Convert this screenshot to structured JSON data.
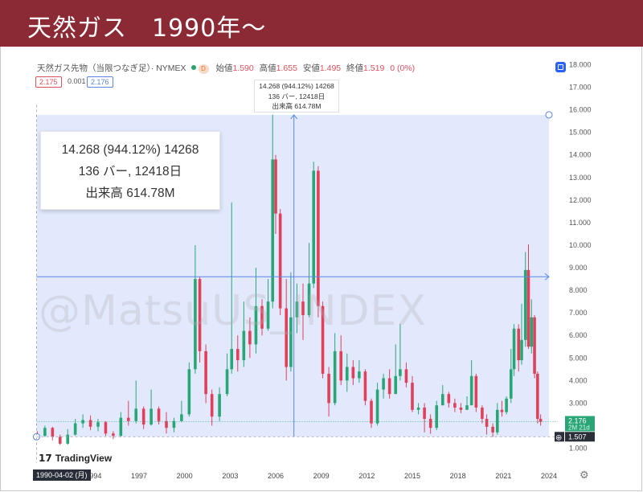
{
  "header": {
    "title": "天然ガス　1990年〜"
  },
  "symbol": {
    "name": "天然ガス先物（当限つなぎ足）· NYMEX",
    "interval_badge": "D",
    "open_label": "始値",
    "open": "1.590",
    "high_label": "高値",
    "high": "1.655",
    "low_label": "安値",
    "low": "1.495",
    "close_label": "終値",
    "close": "1.519",
    "change": "0 (0%)"
  },
  "bid": "2.175",
  "spread": "0.001",
  "ask": "2.176",
  "measure_small": {
    "line1": "14.268 (944.12%) 14268",
    "line2": "136 バー, 12418日",
    "line3": "出来高 614.78M"
  },
  "measure_big": {
    "line1": "14.268 (944.12%) 14268",
    "line2": "136 バー, 12418日",
    "line3": "出来高 614.78M"
  },
  "watermark": "@MatsuUS_INDEX",
  "logo": "TradingView",
  "cursor_date": "1990-04-02 (月)",
  "price_tags": {
    "current": "2.176",
    "countdown": "2M 21d",
    "low_marker": "1.507"
  },
  "colors": {
    "up": "#2aa676",
    "down": "#e0405a",
    "title_bg": "#8b2a35",
    "measure_fill": "#dfe7fd",
    "measure_line": "#5b86e5"
  },
  "chart_data": {
    "type": "candlestick",
    "title": "",
    "interval": "monthly",
    "y_axis": {
      "ticks": [
        "1.000",
        "2.000",
        "3.000",
        "4.000",
        "5.000",
        "6.000",
        "7.000",
        "8.000",
        "9.000",
        "10.000",
        "11.000",
        "12.000",
        "13.000",
        "14.000",
        "15.000",
        "16.000",
        "17.000",
        "18.000"
      ],
      "ylim": [
        1.0,
        18.0
      ],
      "position": "right"
    },
    "x_axis": {
      "ticks": [
        "1994",
        "1997",
        "2000",
        "2003",
        "2006",
        "2009",
        "2012",
        "2015",
        "2018",
        "2021",
        "2024"
      ],
      "range": [
        1990.25,
        2024.0
      ]
    },
    "grid": false,
    "measurement": {
      "x_start": 1990.25,
      "x_end": 2024.0,
      "y_start": 1.507,
      "y_end": 15.775,
      "change": 14.268,
      "percent": 944.12,
      "bars": 136,
      "days": 12418,
      "volume": "614.78M",
      "center_x": 2007.2,
      "mid_y": 8.6
    },
    "candles": [
      [
        1990.3,
        1.6,
        1.55,
        1.75,
        1.45
      ],
      [
        1990.8,
        1.55,
        1.9,
        2.0,
        1.5
      ],
      [
        1991.3,
        1.9,
        1.5,
        1.95,
        1.35
      ],
      [
        1991.8,
        1.5,
        1.2,
        1.6,
        1.15
      ],
      [
        1992.3,
        1.2,
        1.6,
        1.85,
        1.15
      ],
      [
        1992.8,
        1.6,
        2.1,
        2.3,
        1.55
      ],
      [
        1993.3,
        2.1,
        2.25,
        2.5,
        1.9
      ],
      [
        1993.8,
        2.25,
        1.95,
        2.45,
        1.8
      ],
      [
        1994.3,
        1.95,
        2.15,
        2.3,
        1.75
      ],
      [
        1994.8,
        2.15,
        1.65,
        2.2,
        1.55
      ],
      [
        1995.3,
        1.65,
        1.55,
        1.75,
        1.4
      ],
      [
        1995.8,
        1.55,
        2.35,
        2.6,
        1.5
      ],
      [
        1996.3,
        2.35,
        2.2,
        3.1,
        2.0
      ],
      [
        1996.8,
        2.2,
        2.75,
        4.0,
        2.1
      ],
      [
        1997.3,
        2.75,
        2.05,
        2.85,
        1.85
      ],
      [
        1997.8,
        2.05,
        2.75,
        3.6,
        2.0
      ],
      [
        1998.3,
        2.75,
        2.2,
        2.85,
        2.05
      ],
      [
        1998.8,
        2.2,
        1.9,
        2.6,
        1.65
      ],
      [
        1999.3,
        1.9,
        2.2,
        2.35,
        1.7
      ],
      [
        1999.8,
        2.2,
        2.5,
        3.1,
        2.15
      ],
      [
        2000.3,
        2.5,
        4.5,
        4.8,
        2.4
      ],
      [
        2000.7,
        4.5,
        8.5,
        10.0,
        4.3
      ],
      [
        2001.0,
        8.5,
        5.3,
        8.6,
        4.8
      ],
      [
        2001.4,
        5.3,
        3.4,
        5.6,
        3.0
      ],
      [
        2001.8,
        3.4,
        2.4,
        3.6,
        2.0
      ],
      [
        2002.3,
        2.4,
        3.4,
        3.7,
        2.2
      ],
      [
        2002.8,
        3.4,
        4.5,
        5.2,
        3.3
      ],
      [
        2003.1,
        4.5,
        5.4,
        11.9,
        4.3
      ],
      [
        2003.5,
        5.4,
        4.9,
        6.0,
        4.4
      ],
      [
        2003.9,
        4.9,
        6.2,
        7.5,
        4.6
      ],
      [
        2004.3,
        6.2,
        5.6,
        6.8,
        5.0
      ],
      [
        2004.7,
        5.6,
        7.3,
        9.0,
        5.2
      ],
      [
        2005.1,
        7.3,
        6.3,
        7.6,
        6.0
      ],
      [
        2005.5,
        6.3,
        7.5,
        8.5,
        6.2
      ],
      [
        2005.8,
        7.5,
        13.8,
        15.78,
        7.2
      ],
      [
        2006.0,
        13.8,
        11.4,
        14.0,
        10.5
      ],
      [
        2006.3,
        11.4,
        7.2,
        11.6,
        6.9
      ],
      [
        2006.7,
        7.2,
        4.6,
        8.5,
        4.0
      ],
      [
        2007.0,
        4.6,
        6.8,
        8.8,
        4.4
      ],
      [
        2007.4,
        6.8,
        7.5,
        8.3,
        6.1
      ],
      [
        2007.8,
        7.5,
        6.9,
        8.3,
        5.8
      ],
      [
        2008.2,
        6.9,
        8.3,
        10.1,
        6.8
      ],
      [
        2008.5,
        8.3,
        13.3,
        13.7,
        8.1
      ],
      [
        2008.8,
        13.3,
        7.3,
        13.5,
        6.8
      ],
      [
        2009.1,
        7.3,
        4.3,
        7.5,
        4.1
      ],
      [
        2009.5,
        4.3,
        3.0,
        4.6,
        2.4
      ],
      [
        2009.9,
        3.0,
        5.3,
        6.1,
        2.9
      ],
      [
        2010.3,
        5.3,
        4.0,
        6.0,
        3.8
      ],
      [
        2010.7,
        4.0,
        4.6,
        5.2,
        3.5
      ],
      [
        2011.1,
        4.6,
        4.1,
        4.9,
        3.8
      ],
      [
        2011.5,
        4.1,
        4.4,
        4.9,
        3.9
      ],
      [
        2011.9,
        4.4,
        3.1,
        4.5,
        2.9
      ],
      [
        2012.3,
        3.1,
        2.1,
        3.2,
        1.9
      ],
      [
        2012.7,
        2.1,
        3.6,
        3.9,
        2.0
      ],
      [
        2013.1,
        3.6,
        4.1,
        4.3,
        3.2
      ],
      [
        2013.5,
        4.1,
        3.4,
        4.5,
        3.2
      ],
      [
        2013.9,
        3.4,
        4.2,
        5.6,
        3.4
      ],
      [
        2014.2,
        4.2,
        4.5,
        6.5,
        4.0
      ],
      [
        2014.6,
        4.5,
        3.9,
        4.8,
        3.7
      ],
      [
        2015.0,
        3.9,
        2.7,
        4.2,
        2.6
      ],
      [
        2015.4,
        2.7,
        2.8,
        3.0,
        2.5
      ],
      [
        2015.8,
        2.8,
        2.3,
        3.0,
        1.7
      ],
      [
        2016.2,
        2.3,
        1.9,
        2.5,
        1.64
      ],
      [
        2016.6,
        1.9,
        2.9,
        3.1,
        1.8
      ],
      [
        2017.0,
        2.9,
        3.4,
        3.8,
        2.9
      ],
      [
        2017.4,
        3.4,
        3.0,
        3.5,
        2.8
      ],
      [
        2017.8,
        3.0,
        2.8,
        3.2,
        2.6
      ],
      [
        2018.2,
        2.8,
        2.7,
        3.0,
        2.55
      ],
      [
        2018.6,
        2.7,
        2.9,
        3.3,
        2.7
      ],
      [
        2018.9,
        2.9,
        4.2,
        4.9,
        3.1
      ],
      [
        2019.2,
        4.2,
        2.8,
        4.3,
        2.6
      ],
      [
        2019.6,
        2.8,
        2.3,
        2.9,
        2.1
      ],
      [
        2019.9,
        2.3,
        1.95,
        2.5,
        1.6
      ],
      [
        2020.3,
        1.95,
        1.7,
        2.1,
        1.5
      ],
      [
        2020.6,
        1.7,
        2.7,
        3.0,
        1.6
      ],
      [
        2020.9,
        2.7,
        2.6,
        3.1,
        2.4
      ],
      [
        2021.2,
        2.6,
        3.2,
        3.3,
        2.5
      ],
      [
        2021.5,
        3.2,
        4.5,
        5.4,
        3.0
      ],
      [
        2021.7,
        4.5,
        6.3,
        6.5,
        4.2
      ],
      [
        2022.0,
        6.3,
        4.9,
        6.5,
        4.4
      ],
      [
        2022.2,
        4.9,
        5.8,
        7.4,
        4.7
      ],
      [
        2022.45,
        5.8,
        8.9,
        9.7,
        5.5
      ],
      [
        2022.65,
        8.9,
        5.5,
        10.03,
        5.4
      ],
      [
        2022.85,
        5.5,
        6.8,
        7.6,
        5.2
      ],
      [
        2023.05,
        6.8,
        4.3,
        6.9,
        4.1
      ],
      [
        2023.25,
        4.3,
        2.3,
        4.4,
        2.1
      ],
      [
        2023.45,
        2.3,
        2.17,
        2.5,
        2.0
      ]
    ]
  }
}
